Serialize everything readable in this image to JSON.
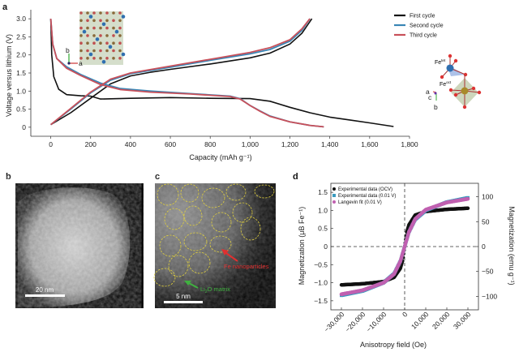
{
  "panels": {
    "a": "a",
    "b": "b",
    "c": "c",
    "d": "d"
  },
  "chart_data": [
    {
      "type": "line",
      "panel": "a",
      "xlabel": "Capacity (mAh g⁻¹)",
      "ylabel": "Voltage versus lithium (V)",
      "xlim": [
        -100,
        1800
      ],
      "ylim": [
        -0.25,
        3.25
      ],
      "xticks": [
        0,
        200,
        400,
        600,
        800,
        1000,
        1200,
        1400,
        1600,
        1800
      ],
      "xtick_labels": [
        "0",
        "200",
        "400",
        "600",
        "800",
        "1,000",
        "1,200",
        "1,400",
        "1,600",
        "1,800"
      ],
      "yticks": [
        0,
        0.5,
        1.0,
        1.5,
        2.0,
        2.5,
        3.0
      ],
      "ytick_labels": [
        "0",
        "0.5",
        "1.0",
        "1.5",
        "2.0",
        "2.5",
        "3.0"
      ],
      "legend_position": "top-right",
      "series": [
        {
          "name": "First cycle",
          "color": "#111111",
          "discharge": [
            [
              0,
              3.0
            ],
            [
              5,
              2.0
            ],
            [
              15,
              1.4
            ],
            [
              40,
              1.05
            ],
            [
              80,
              0.9
            ],
            [
              150,
              0.87
            ],
            [
              200,
              0.86
            ],
            [
              250,
              0.78
            ],
            [
              400,
              0.8
            ],
            [
              600,
              0.82
            ],
            [
              800,
              0.8
            ],
            [
              1000,
              0.79
            ],
            [
              1100,
              0.72
            ],
            [
              1200,
              0.55
            ],
            [
              1300,
              0.4
            ],
            [
              1400,
              0.28
            ],
            [
              1500,
              0.2
            ],
            [
              1600,
              0.12
            ],
            [
              1720,
              0.02
            ]
          ],
          "charge": [
            [
              0,
              0.07
            ],
            [
              100,
              0.4
            ],
            [
              200,
              0.8
            ],
            [
              300,
              1.2
            ],
            [
              400,
              1.42
            ],
            [
              500,
              1.52
            ],
            [
              600,
              1.6
            ],
            [
              800,
              1.75
            ],
            [
              1000,
              1.92
            ],
            [
              1100,
              2.05
            ],
            [
              1200,
              2.3
            ],
            [
              1260,
              2.6
            ],
            [
              1310,
              3.0
            ]
          ]
        },
        {
          "name": "Second cycle",
          "color": "#3a86b5",
          "discharge": [
            [
              0,
              3.0
            ],
            [
              10,
              2.3
            ],
            [
              30,
              1.9
            ],
            [
              80,
              1.67
            ],
            [
              150,
              1.46
            ],
            [
              250,
              1.22
            ],
            [
              350,
              1.07
            ],
            [
              500,
              1.0
            ],
            [
              700,
              0.93
            ],
            [
              900,
              0.86
            ],
            [
              950,
              0.79
            ],
            [
              1000,
              0.6
            ],
            [
              1050,
              0.45
            ],
            [
              1100,
              0.31
            ],
            [
              1200,
              0.15
            ],
            [
              1300,
              0.05
            ],
            [
              1370,
              0.01
            ]
          ],
          "charge": [
            [
              0,
              0.07
            ],
            [
              100,
              0.5
            ],
            [
              200,
              0.95
            ],
            [
              300,
              1.3
            ],
            [
              400,
              1.48
            ],
            [
              600,
              1.66
            ],
            [
              800,
              1.85
            ],
            [
              1000,
              2.03
            ],
            [
              1100,
              2.15
            ],
            [
              1200,
              2.38
            ],
            [
              1260,
              2.68
            ],
            [
              1300,
              3.0
            ]
          ]
        },
        {
          "name": "Third cycle",
          "color": "#c8505a",
          "discharge": [
            [
              0,
              3.0
            ],
            [
              10,
              2.3
            ],
            [
              30,
              1.9
            ],
            [
              80,
              1.63
            ],
            [
              150,
              1.43
            ],
            [
              250,
              1.18
            ],
            [
              350,
              1.04
            ],
            [
              500,
              0.97
            ],
            [
              700,
              0.92
            ],
            [
              900,
              0.85
            ],
            [
              950,
              0.78
            ],
            [
              1000,
              0.6
            ],
            [
              1050,
              0.44
            ],
            [
              1100,
              0.3
            ],
            [
              1200,
              0.15
            ],
            [
              1300,
              0.05
            ],
            [
              1370,
              0.01
            ]
          ],
          "charge": [
            [
              0,
              0.07
            ],
            [
              100,
              0.52
            ],
            [
              200,
              0.97
            ],
            [
              300,
              1.33
            ],
            [
              400,
              1.5
            ],
            [
              600,
              1.69
            ],
            [
              800,
              1.88
            ],
            [
              1000,
              2.07
            ],
            [
              1100,
              2.2
            ],
            [
              1200,
              2.42
            ],
            [
              1260,
              2.72
            ],
            [
              1300,
              3.0
            ]
          ]
        }
      ],
      "insets": {
        "axes_left": [
          "b",
          "a"
        ],
        "axes_right": [
          "a",
          "c",
          "b"
        ],
        "fe_tet": "Fe",
        "fe_tet_sup": "tet",
        "fe_oct": "Fe",
        "fe_oct_sup": "oct"
      }
    },
    {
      "type": "scatter",
      "panel": "d",
      "xlabel": "Anisotropy field (Oe)",
      "ylabel": "Magnetization (μB Fe⁻¹)",
      "ylabel_right": "Magnetization (emu g⁻¹)",
      "xlim": [
        -35000,
        35000
      ],
      "ylim": [
        -1.75,
        1.75
      ],
      "ylim_right": [
        -127,
        127
      ],
      "xticks": [
        -30000,
        -20000,
        -10000,
        0,
        10000,
        20000,
        30000
      ],
      "xtick_labels": [
        "−30,000",
        "−20,000",
        "−10,000",
        "0",
        "10,000",
        "20,000",
        "30,000"
      ],
      "yticks": [
        -1.5,
        -1.0,
        -0.5,
        0,
        0.5,
        1.0,
        1.5
      ],
      "ytick_labels": [
        "−1.5",
        "−1.0",
        "−0.5",
        "0",
        "0.5",
        "1.0",
        "1.5"
      ],
      "yticks_right": [
        -100,
        -50,
        0,
        50,
        100
      ],
      "ytick_right_labels": [
        "−100",
        "−50",
        "0",
        "50",
        "100"
      ],
      "legend_position": "top-left",
      "x": [
        -30000,
        -20000,
        -10000,
        -5000,
        -2000,
        -1000,
        0,
        1000,
        2000,
        5000,
        10000,
        20000,
        30000
      ],
      "series": [
        {
          "name": "Experimental data (OCV)",
          "color": "#111111",
          "values": [
            -1.06,
            -1.03,
            -0.97,
            -0.85,
            -0.6,
            -0.4,
            0,
            0.4,
            0.6,
            0.87,
            0.97,
            1.03,
            1.06
          ]
        },
        {
          "name": "Experimental data (0.01 V)",
          "color": "#3a9bbf",
          "values": [
            -1.35,
            -1.23,
            -1.0,
            -0.75,
            -0.4,
            -0.2,
            0,
            0.2,
            0.4,
            0.75,
            1.0,
            1.23,
            1.35
          ]
        },
        {
          "name": "Langevin fit (0.01 V)",
          "color": "#c060b0",
          "values": [
            -1.32,
            -1.21,
            -1.0,
            -0.76,
            -0.4,
            -0.2,
            0,
            0.2,
            0.4,
            0.76,
            1.02,
            1.22,
            1.32
          ]
        }
      ]
    }
  ],
  "panel_b": {
    "scale_bar": "20 nm"
  },
  "panel_c": {
    "scale_bar": "5 nm",
    "label_fe": "Fe nanoparticles",
    "label_li2o_pre": "Li",
    "label_li2o_sub": "2",
    "label_li2o_post": "O matrix",
    "fe_color": "#e03030",
    "li2o_color": "#40b040"
  }
}
